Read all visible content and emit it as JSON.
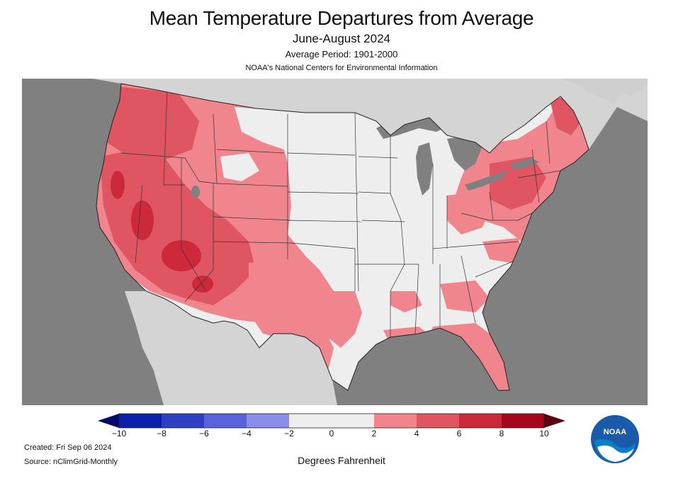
{
  "header": {
    "title": "Mean Temperature Departures from Average",
    "subtitle": "June-August 2024",
    "period": "Average Period: 1901-2000",
    "org": "NOAA's National Centers for Environmental Information"
  },
  "map": {
    "region": "Contiguous United States",
    "colors": {
      "ocean": "#808080",
      "foreign_land": "#d4d4d4",
      "near_normal": "#eeeeee",
      "warm_2_4": "#f0858e",
      "warm_4_6": "#e05562",
      "warm_6_8": "#cc2a3a",
      "state_border": "#333333"
    }
  },
  "legend": {
    "tick_labels": [
      "−10",
      "−8",
      "−6",
      "−4",
      "−2",
      "0",
      "2",
      "4",
      "6",
      "8",
      "10"
    ],
    "colors": [
      "#0a1ea8",
      "#2f3fc2",
      "#5a63d9",
      "#8a8de8",
      "#eeeeee",
      "#eeeeee",
      "#f0858e",
      "#e05562",
      "#cc2a3a",
      "#a5081d"
    ],
    "left_arrow_color": "#030a6e",
    "right_arrow_color": "#5c0510",
    "units": "Degrees Fahrenheit"
  },
  "footer": {
    "created": "Created: Fri Sep 06 2024",
    "source": "Source: nClimGrid-Monthly"
  },
  "logo": {
    "text": "NOAA",
    "icon": "noaa-logo-icon"
  }
}
